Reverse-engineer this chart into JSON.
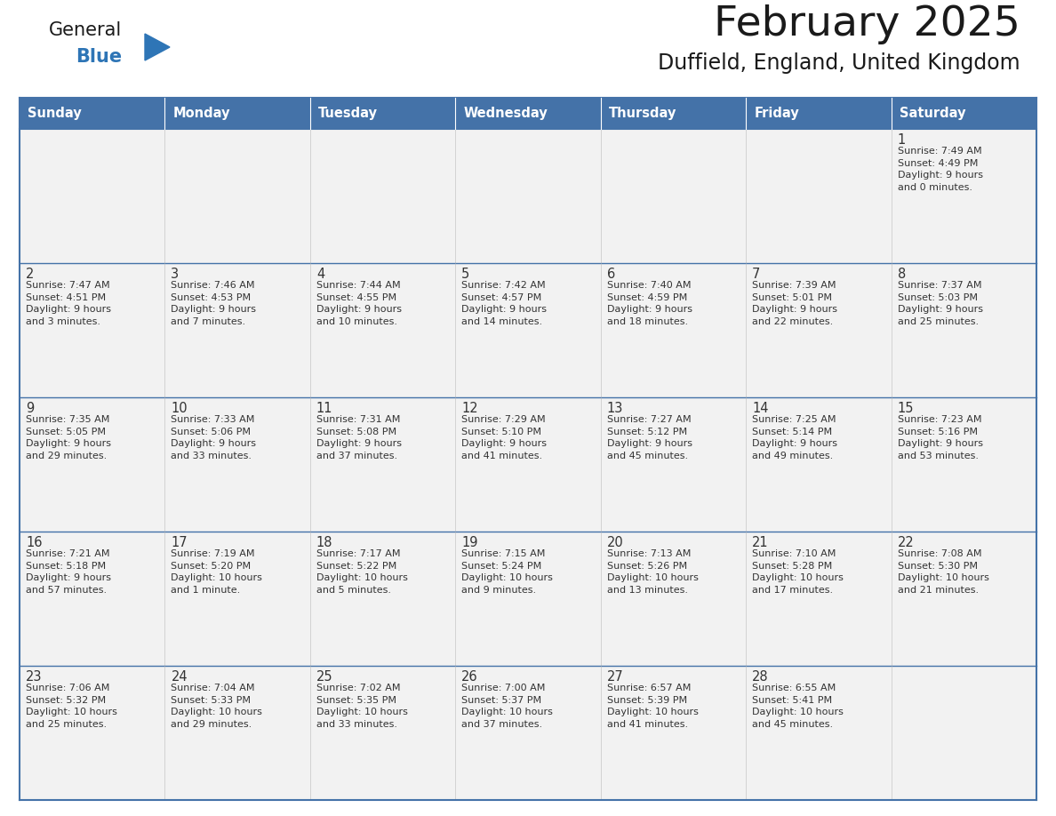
{
  "title": "February 2025",
  "subtitle": "Duffield, England, United Kingdom",
  "days_of_week": [
    "Sunday",
    "Monday",
    "Tuesday",
    "Wednesday",
    "Thursday",
    "Friday",
    "Saturday"
  ],
  "header_bg": "#4472A8",
  "header_text": "#FFFFFF",
  "cell_bg": "#F2F2F2",
  "cell_text": "#333333",
  "date_text": "#333333",
  "line_color": "#4472A8",
  "grid_line_color": "#4472A8",
  "title_color": "#1a1a1a",
  "subtitle_color": "#1a1a1a",
  "logo_general_color": "#1a1a1a",
  "logo_blue_color": "#2E75B6",
  "weeks": [
    {
      "days": [
        {
          "date": null,
          "info": null
        },
        {
          "date": null,
          "info": null
        },
        {
          "date": null,
          "info": null
        },
        {
          "date": null,
          "info": null
        },
        {
          "date": null,
          "info": null
        },
        {
          "date": null,
          "info": null
        },
        {
          "date": 1,
          "info": "Sunrise: 7:49 AM\nSunset: 4:49 PM\nDaylight: 9 hours\nand 0 minutes."
        }
      ]
    },
    {
      "days": [
        {
          "date": 2,
          "info": "Sunrise: 7:47 AM\nSunset: 4:51 PM\nDaylight: 9 hours\nand 3 minutes."
        },
        {
          "date": 3,
          "info": "Sunrise: 7:46 AM\nSunset: 4:53 PM\nDaylight: 9 hours\nand 7 minutes."
        },
        {
          "date": 4,
          "info": "Sunrise: 7:44 AM\nSunset: 4:55 PM\nDaylight: 9 hours\nand 10 minutes."
        },
        {
          "date": 5,
          "info": "Sunrise: 7:42 AM\nSunset: 4:57 PM\nDaylight: 9 hours\nand 14 minutes."
        },
        {
          "date": 6,
          "info": "Sunrise: 7:40 AM\nSunset: 4:59 PM\nDaylight: 9 hours\nand 18 minutes."
        },
        {
          "date": 7,
          "info": "Sunrise: 7:39 AM\nSunset: 5:01 PM\nDaylight: 9 hours\nand 22 minutes."
        },
        {
          "date": 8,
          "info": "Sunrise: 7:37 AM\nSunset: 5:03 PM\nDaylight: 9 hours\nand 25 minutes."
        }
      ]
    },
    {
      "days": [
        {
          "date": 9,
          "info": "Sunrise: 7:35 AM\nSunset: 5:05 PM\nDaylight: 9 hours\nand 29 minutes."
        },
        {
          "date": 10,
          "info": "Sunrise: 7:33 AM\nSunset: 5:06 PM\nDaylight: 9 hours\nand 33 minutes."
        },
        {
          "date": 11,
          "info": "Sunrise: 7:31 AM\nSunset: 5:08 PM\nDaylight: 9 hours\nand 37 minutes."
        },
        {
          "date": 12,
          "info": "Sunrise: 7:29 AM\nSunset: 5:10 PM\nDaylight: 9 hours\nand 41 minutes."
        },
        {
          "date": 13,
          "info": "Sunrise: 7:27 AM\nSunset: 5:12 PM\nDaylight: 9 hours\nand 45 minutes."
        },
        {
          "date": 14,
          "info": "Sunrise: 7:25 AM\nSunset: 5:14 PM\nDaylight: 9 hours\nand 49 minutes."
        },
        {
          "date": 15,
          "info": "Sunrise: 7:23 AM\nSunset: 5:16 PM\nDaylight: 9 hours\nand 53 minutes."
        }
      ]
    },
    {
      "days": [
        {
          "date": 16,
          "info": "Sunrise: 7:21 AM\nSunset: 5:18 PM\nDaylight: 9 hours\nand 57 minutes."
        },
        {
          "date": 17,
          "info": "Sunrise: 7:19 AM\nSunset: 5:20 PM\nDaylight: 10 hours\nand 1 minute."
        },
        {
          "date": 18,
          "info": "Sunrise: 7:17 AM\nSunset: 5:22 PM\nDaylight: 10 hours\nand 5 minutes."
        },
        {
          "date": 19,
          "info": "Sunrise: 7:15 AM\nSunset: 5:24 PM\nDaylight: 10 hours\nand 9 minutes."
        },
        {
          "date": 20,
          "info": "Sunrise: 7:13 AM\nSunset: 5:26 PM\nDaylight: 10 hours\nand 13 minutes."
        },
        {
          "date": 21,
          "info": "Sunrise: 7:10 AM\nSunset: 5:28 PM\nDaylight: 10 hours\nand 17 minutes."
        },
        {
          "date": 22,
          "info": "Sunrise: 7:08 AM\nSunset: 5:30 PM\nDaylight: 10 hours\nand 21 minutes."
        }
      ]
    },
    {
      "days": [
        {
          "date": 23,
          "info": "Sunrise: 7:06 AM\nSunset: 5:32 PM\nDaylight: 10 hours\nand 25 minutes."
        },
        {
          "date": 24,
          "info": "Sunrise: 7:04 AM\nSunset: 5:33 PM\nDaylight: 10 hours\nand 29 minutes."
        },
        {
          "date": 25,
          "info": "Sunrise: 7:02 AM\nSunset: 5:35 PM\nDaylight: 10 hours\nand 33 minutes."
        },
        {
          "date": 26,
          "info": "Sunrise: 7:00 AM\nSunset: 5:37 PM\nDaylight: 10 hours\nand 37 minutes."
        },
        {
          "date": 27,
          "info": "Sunrise: 6:57 AM\nSunset: 5:39 PM\nDaylight: 10 hours\nand 41 minutes."
        },
        {
          "date": 28,
          "info": "Sunrise: 6:55 AM\nSunset: 5:41 PM\nDaylight: 10 hours\nand 45 minutes."
        },
        {
          "date": null,
          "info": null
        }
      ]
    }
  ]
}
